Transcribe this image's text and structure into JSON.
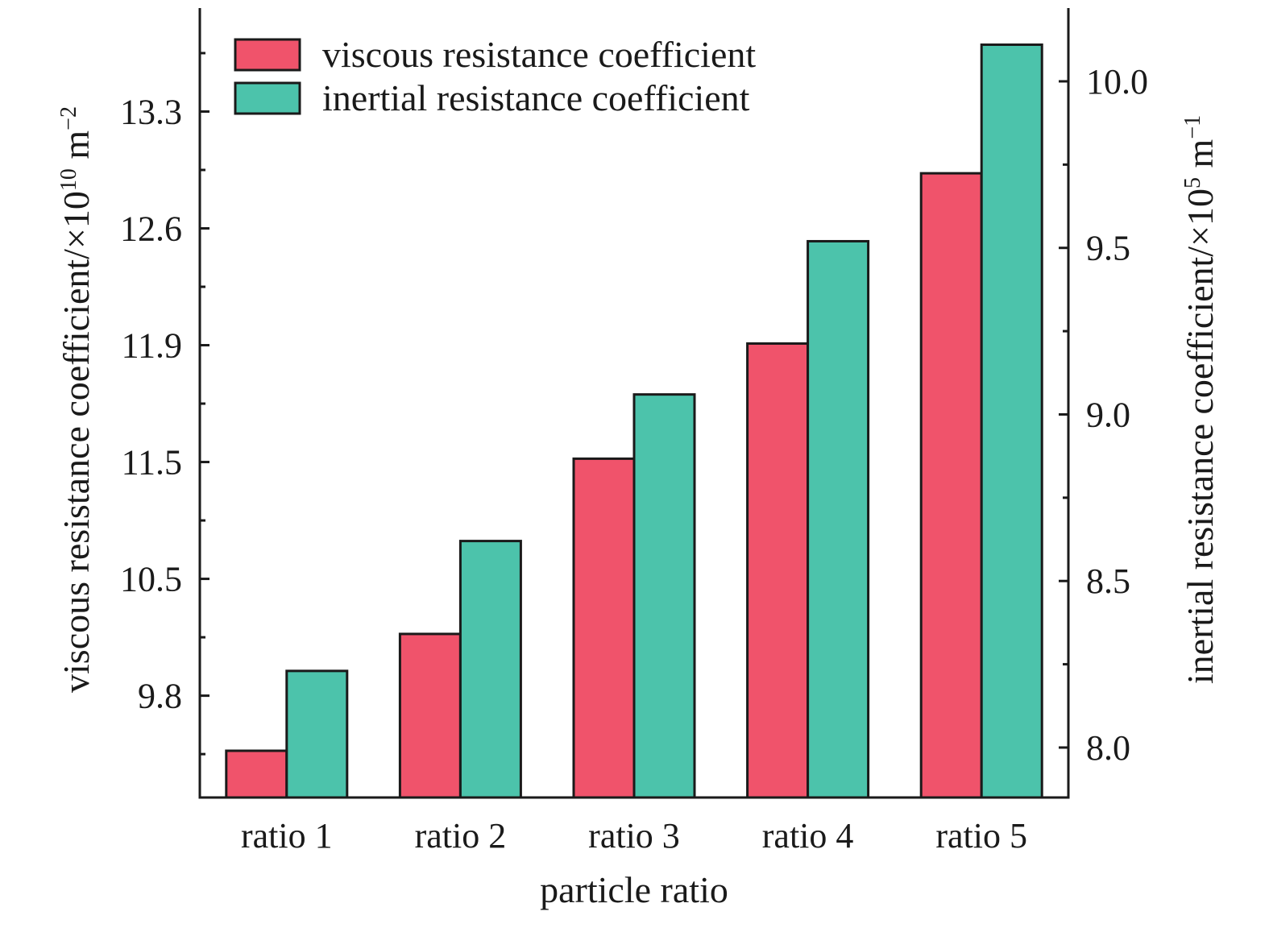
{
  "chart_data": {
    "type": "bar",
    "xlabel": "particle ratio",
    "categories": [
      "ratio 1",
      "ratio 2",
      "ratio 3",
      "ratio 4",
      "ratio 5"
    ],
    "series": [
      {
        "name": "viscous resistance coefficient",
        "axis": "left",
        "color": "#f0536b",
        "values": [
          9.47,
          10.17,
          11.22,
          11.91,
          12.93
        ]
      },
      {
        "name": "inertial resistance coefficient",
        "axis": "right",
        "color": "#4cc3ab",
        "values": [
          8.23,
          8.62,
          9.06,
          9.52,
          10.11
        ]
      }
    ],
    "y_left": {
      "label": {
        "main": "viscous resistance coefficient/×10",
        "sup1": "10",
        "mid": " m",
        "sup2": "−2"
      },
      "range": [
        9.19,
        13.92
      ],
      "ticks": [
        "9.8",
        "10.5",
        "11.5",
        "11.9",
        "12.6",
        "13.3"
      ]
    },
    "y_right": {
      "label": {
        "main": "inertial resistance coefficient/×10",
        "sup1": "5",
        "mid": " m",
        "sup2": "−1"
      },
      "range": [
        7.85,
        10.22
      ],
      "ticks": [
        "8.0",
        "8.5",
        "9.0",
        "9.5",
        "10.0"
      ]
    },
    "legend_position": "top-left"
  }
}
